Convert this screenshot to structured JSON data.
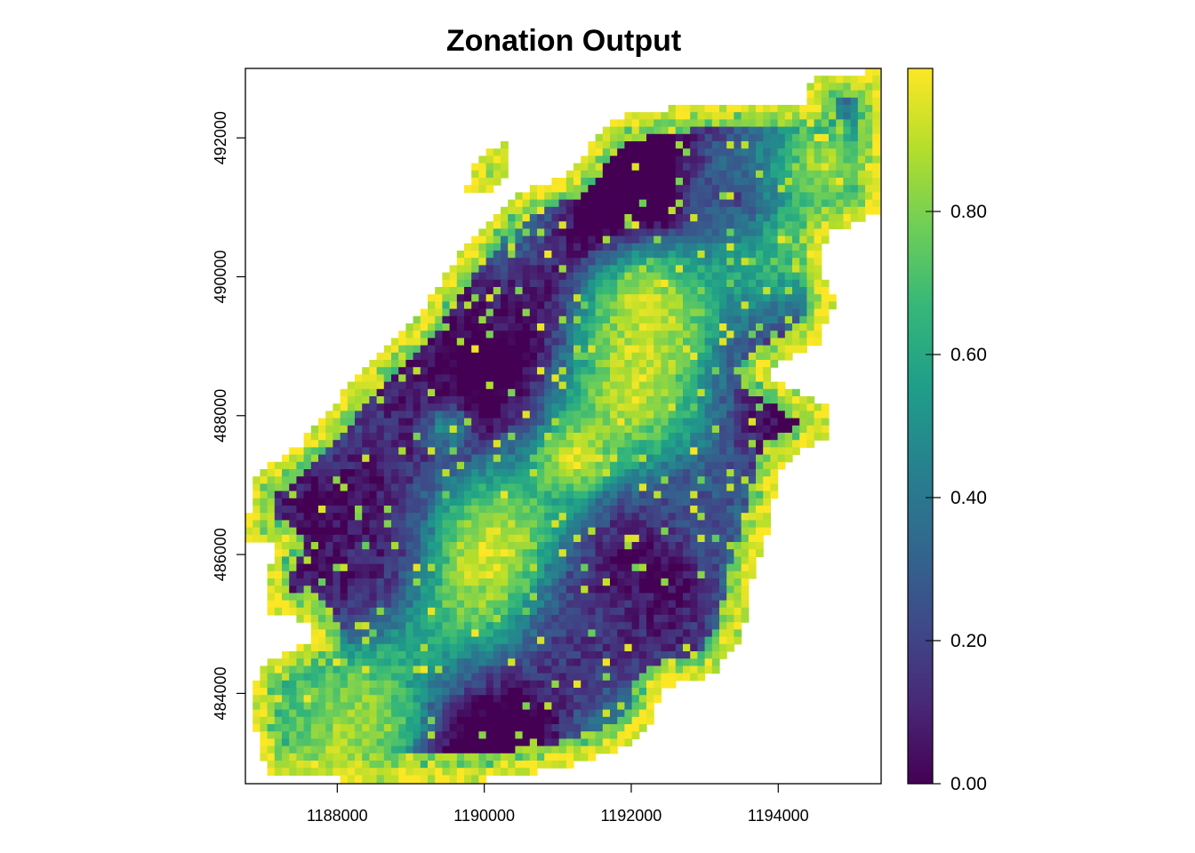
{
  "chart_data": {
    "type": "heatmap",
    "title": "Zonation Output",
    "xlabel": "",
    "ylabel": "",
    "x_ticks": [
      1188000,
      1190000,
      1192000,
      1194000
    ],
    "x_tick_labels": [
      "1188000",
      "1190000",
      "1192000",
      "1194000"
    ],
    "y_ticks": [
      484000,
      486000,
      488000,
      490000,
      492000
    ],
    "y_tick_labels": [
      "484000",
      "486000",
      "488000",
      "490000",
      "492000"
    ],
    "xlim": [
      1186750,
      1195400
    ],
    "ylim": [
      482700,
      493000
    ],
    "colorbar": {
      "range": [
        0,
        1
      ],
      "ticks": [
        0,
        0.2,
        0.4,
        0.6,
        0.8
      ],
      "tick_labels": [
        "0.00",
        "0.20",
        "0.40",
        "0.60",
        "0.80"
      ],
      "palette": [
        "#440154",
        "#482878",
        "#3e4a89",
        "#31688e",
        "#26828e",
        "#1f9e89",
        "#35b779",
        "#6ece58",
        "#b5de2b",
        "#fde725"
      ]
    },
    "grid": false,
    "legend": "right",
    "raster_description": "Zonation priority rank raster over an irregular study area; low values (dark purple) in west-central region, high values (yellow) along edges, north-east and central-east hotspots."
  }
}
